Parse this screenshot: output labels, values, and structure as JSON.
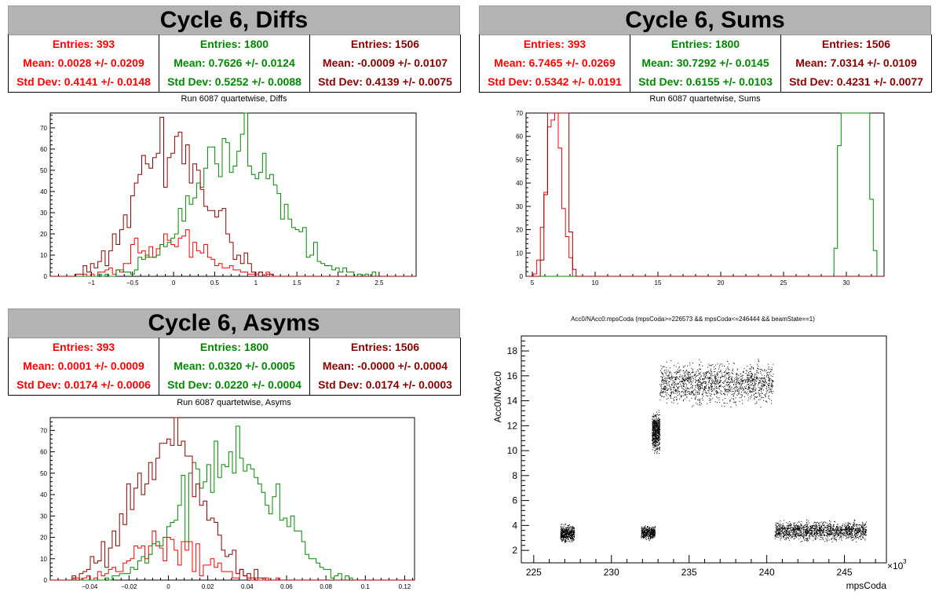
{
  "colors": {
    "red": "#ff0000",
    "green": "#008800",
    "darkred": "#8b0000",
    "title_bg": "#b3b3b3"
  },
  "panels": {
    "diffs": {
      "title": "Cycle 6, Diffs",
      "subtitle": "Run 6087 quartetwise, Diffs",
      "stats": [
        {
          "entries": "Entries: 393",
          "mean": "Mean: 0.0028 +/- 0.0209",
          "std": "Std Dev: 0.4141 +/- 0.0148",
          "color": "#ff0000"
        },
        {
          "entries": "Entries: 1800",
          "mean": "Mean: 0.7626 +/- 0.0124",
          "std": "Std Dev: 0.5252 +/- 0.0088",
          "color": "#008800"
        },
        {
          "entries": "Entries: 1506",
          "mean": "Mean: -0.0009 +/- 0.0107",
          "std": "Std Dev: 0.4139 +/- 0.0075",
          "color": "#8b0000"
        }
      ]
    },
    "sums": {
      "title": "Cycle 6, Sums",
      "subtitle": "Run 6087 quartetwise, Sums",
      "stats": [
        {
          "entries": "Entries: 393",
          "mean": "Mean: 6.7465 +/- 0.0269",
          "std": "Std Dev: 0.5342 +/- 0.0191",
          "color": "#ff0000"
        },
        {
          "entries": "Entries: 1800",
          "mean": "Mean: 30.7292 +/- 0.0145",
          "std": "Std Dev: 0.6155 +/- 0.0103",
          "color": "#008800"
        },
        {
          "entries": "Entries: 1506",
          "mean": "Mean: 7.0314 +/- 0.0109",
          "std": "Std Dev: 0.4231 +/- 0.0077",
          "color": "#8b0000"
        }
      ]
    },
    "asyms": {
      "title": "Cycle 6, Asyms",
      "subtitle": "Run 6087 quartetwise, Asyms",
      "stats": [
        {
          "entries": "Entries: 393",
          "mean": "Mean: 0.0001 +/- 0.0009",
          "std": "Std Dev: 0.0174 +/- 0.0006",
          "color": "#ff0000"
        },
        {
          "entries": "Entries: 1800",
          "mean": "Mean: 0.0320 +/- 0.0005",
          "std": "Std Dev: 0.0220 +/- 0.0004",
          "color": "#008800"
        },
        {
          "entries": "Entries: 1506",
          "mean": "Mean: -0.0000 +/- 0.0004",
          "std": "Std Dev: 0.0174 +/- 0.0003",
          "color": "#8b0000"
        }
      ]
    }
  },
  "chart_data": [
    {
      "id": "diffs",
      "type": "histogram",
      "xlim": [
        -1.5,
        2.95
      ],
      "ylim": [
        0,
        77
      ],
      "xticks": [
        -1,
        -0.5,
        0,
        0.5,
        1,
        1.5,
        2,
        2.5
      ],
      "xtick_labels": [
        "−1",
        "−0.5",
        "0",
        "0.5",
        "1",
        "1.5",
        "2",
        "2.5"
      ],
      "yticks": [
        0,
        10,
        20,
        30,
        40,
        50,
        60,
        70
      ],
      "series": [
        {
          "entries": 393,
          "mean": 0.0028,
          "std": 0.4141,
          "color": "#ff0000"
        },
        {
          "entries": 1800,
          "mean": 0.7626,
          "std": 0.5252,
          "color": "#008800"
        },
        {
          "entries": 1506,
          "mean": -0.0009,
          "std": 0.4139,
          "color": "#8b0000"
        }
      ]
    },
    {
      "id": "sums",
      "type": "histogram",
      "xlim": [
        4.5,
        33
      ],
      "ylim": [
        0,
        70
      ],
      "xticks": [
        5,
        10,
        15,
        20,
        25,
        30
      ],
      "xtick_labels": [
        "5",
        "10",
        "15",
        "20",
        "25",
        "30"
      ],
      "yticks": [
        0,
        10,
        20,
        30,
        40,
        50,
        60,
        70
      ],
      "series": [
        {
          "entries": 393,
          "mean": 6.7465,
          "std": 0.5342,
          "color": "#ff0000"
        },
        {
          "entries": 1800,
          "mean": 30.7292,
          "std": 0.6155,
          "color": "#008800"
        },
        {
          "entries": 1506,
          "mean": 7.0314,
          "std": 0.4231,
          "color": "#8b0000"
        }
      ]
    },
    {
      "id": "asyms",
      "type": "histogram",
      "xlim": [
        -0.06,
        0.125
      ],
      "ylim": [
        0,
        76
      ],
      "xticks": [
        -0.04,
        -0.02,
        0,
        0.02,
        0.04,
        0.06,
        0.08,
        0.1,
        0.12
      ],
      "xtick_labels": [
        "−0.04",
        "−0.02",
        "0",
        "0.02",
        "0.04",
        "0.06",
        "0.08",
        "0.1",
        "0.12"
      ],
      "yticks": [
        0,
        10,
        20,
        30,
        40,
        50,
        60,
        70
      ],
      "series": [
        {
          "entries": 393,
          "mean": 0.0001,
          "std": 0.0174,
          "color": "#ff0000"
        },
        {
          "entries": 1800,
          "mean": 0.032,
          "std": 0.022,
          "color": "#008800"
        },
        {
          "entries": 1506,
          "mean": 0.0,
          "std": 0.0174,
          "color": "#8b0000"
        }
      ]
    },
    {
      "id": "acc0",
      "type": "scatter",
      "title": "Acc0/NAcc0:mpsCoda (mpsCoda>=226573 && mpsCoda<=246444 && beamState==1)",
      "xlabel": "mpsCoda",
      "ylabel": "Acc0/NAcc0",
      "x_multiplier": "×10",
      "x_multiplier_exp": "3",
      "xlim": [
        224.2,
        247.7
      ],
      "ylim": [
        1,
        19.2
      ],
      "xticks": [
        225,
        230,
        235,
        240,
        245
      ],
      "yticks": [
        2,
        4,
        6,
        8,
        10,
        12,
        14,
        16,
        18
      ],
      "clusters": [
        {
          "x": [
            226.7,
            227.6
          ],
          "y": [
            2.6,
            4.2
          ]
        },
        {
          "x": [
            231.9,
            232.8
          ],
          "y": [
            2.8,
            4.1
          ]
        },
        {
          "x": [
            232.6,
            233.1
          ],
          "y": [
            9.8,
            13.3
          ]
        },
        {
          "x": [
            233.1,
            240.4
          ],
          "y": [
            13.5,
            17.4
          ]
        },
        {
          "x": [
            240.5,
            246.4
          ],
          "y": [
            2.7,
            4.5
          ]
        }
      ]
    }
  ]
}
